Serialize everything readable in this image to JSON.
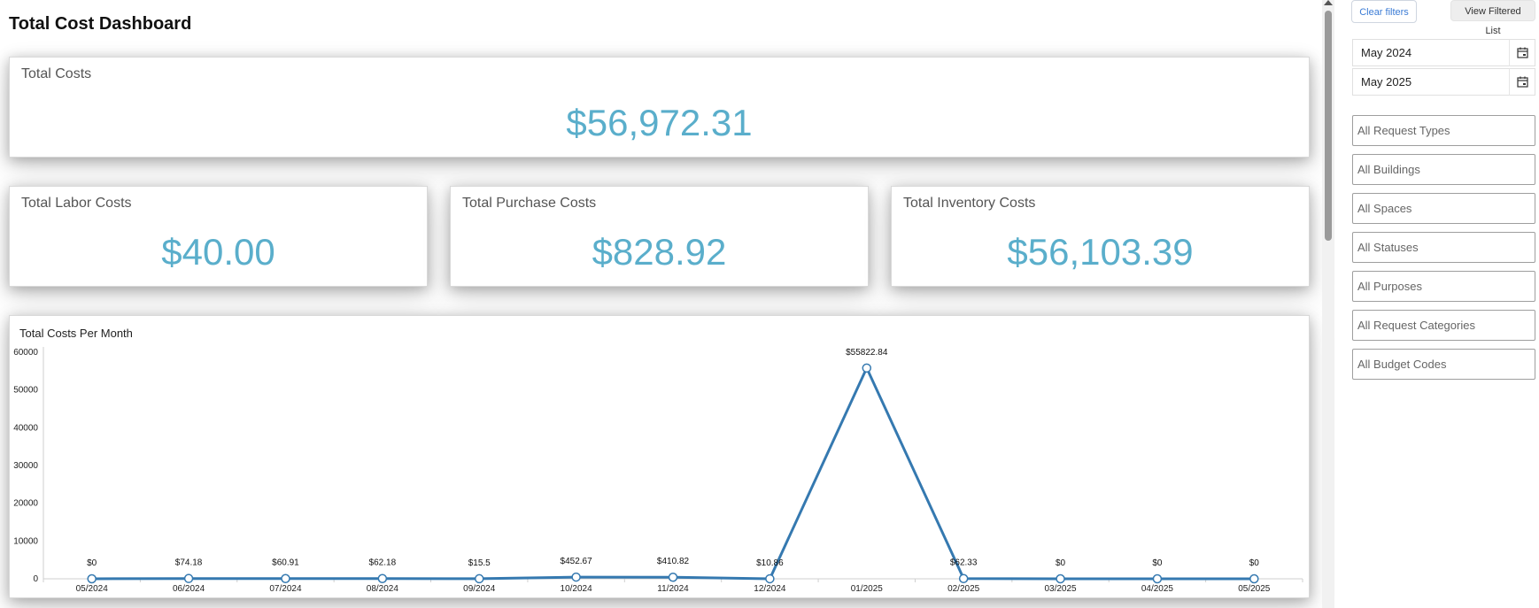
{
  "header": {
    "title": "Total Cost Dashboard"
  },
  "cards": {
    "total": {
      "title": "Total Costs",
      "value": "$56,972.31"
    },
    "labor": {
      "title": "Total Labor Costs",
      "value": "$40.00"
    },
    "purchase": {
      "title": "Total Purchase Costs",
      "value": "$828.92"
    },
    "inventory": {
      "title": "Total Inventory Costs",
      "value": "$56,103.39"
    }
  },
  "filters": {
    "clear_label": "Clear filters",
    "view_list_label": "View Filtered List",
    "start_date": "May 2024",
    "end_date": "May 2025",
    "selects": [
      "All Request Types",
      "All Buildings",
      "All Spaces",
      "All Statuses",
      "All Purposes",
      "All Request Categories",
      "All Budget Codes"
    ]
  },
  "icons": {
    "calendar": "calendar-icon"
  },
  "colors": {
    "value_text": "#5aaecb",
    "line": "#3579b0"
  },
  "chart_data": {
    "type": "line",
    "title": "Total Costs Per Month",
    "categories": [
      "05/2024",
      "06/2024",
      "07/2024",
      "08/2024",
      "09/2024",
      "10/2024",
      "11/2024",
      "12/2024",
      "01/2025",
      "02/2025",
      "03/2025",
      "04/2025",
      "05/2025"
    ],
    "series": [
      {
        "values": [
          0,
          74.18,
          60.91,
          62.18,
          15.5,
          452.67,
          410.82,
          10.86,
          55822.84,
          62.33,
          0,
          0,
          0
        ]
      }
    ],
    "data_labels": [
      "$0",
      "$74.18",
      "$60.91",
      "$62.18",
      "$15.5",
      "$452.67",
      "$410.82",
      "$10.86",
      "$55822.84",
      "$62.33",
      "$0",
      "$0",
      "$0"
    ],
    "ylim": [
      0,
      60000
    ],
    "yticks": [
      0,
      10000,
      20000,
      30000,
      40000,
      50000,
      60000
    ],
    "grid": false,
    "legend": "none"
  }
}
